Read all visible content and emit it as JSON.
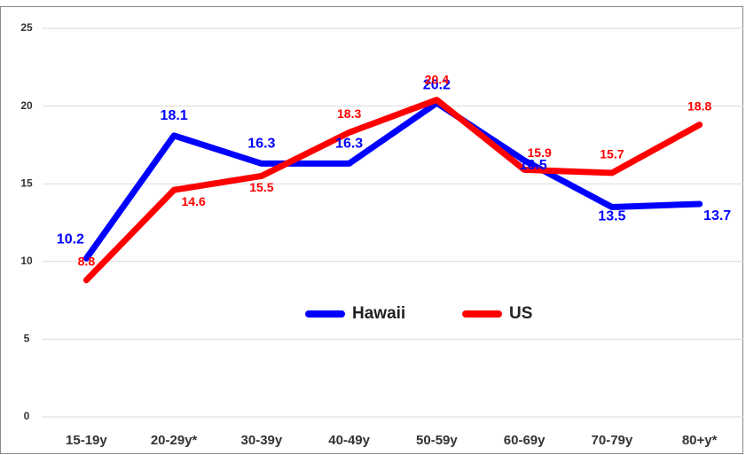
{
  "chart_data": {
    "type": "line",
    "categories": [
      "15-19y",
      "20-29y*",
      "30-39y",
      "40-49y",
      "50-59y",
      "60-69y",
      "70-79y",
      "80+y*"
    ],
    "series": [
      {
        "name": "Hawaii",
        "color": "#0000ff",
        "values": [
          10.2,
          18.1,
          16.3,
          16.3,
          20.2,
          16.5,
          13.5,
          13.7
        ]
      },
      {
        "name": "US",
        "color": "#ff0000",
        "values": [
          8.8,
          14.6,
          15.5,
          18.3,
          20.4,
          15.9,
          15.7,
          18.8
        ]
      }
    ],
    "ylim": [
      0,
      25
    ],
    "yticks": [
      0,
      5,
      10,
      15,
      20,
      25
    ],
    "grid": true,
    "legend": "center"
  }
}
